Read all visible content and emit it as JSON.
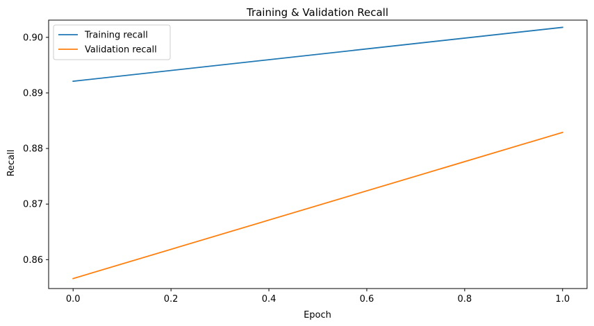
{
  "chart_data": {
    "type": "line",
    "title": "Training & Validation Recall",
    "xlabel": "Epoch",
    "ylabel": "Recall",
    "xlim": [
      -0.05,
      1.05
    ],
    "ylim": [
      0.8548,
      0.9031
    ],
    "x_ticks": [
      0.0,
      0.2,
      0.4,
      0.6,
      0.8,
      1.0
    ],
    "x_tick_labels": [
      "0.0",
      "0.2",
      "0.4",
      "0.6",
      "0.8",
      "1.0"
    ],
    "y_ticks": [
      0.86,
      0.87,
      0.88,
      0.89,
      0.9
    ],
    "y_tick_labels": [
      "0.86",
      "0.87",
      "0.88",
      "0.89",
      "0.90"
    ],
    "grid": false,
    "legend_position": "top-left",
    "series": [
      {
        "name": "Training recall",
        "color": "#1f77b4",
        "x": [
          0,
          1
        ],
        "values": [
          0.8921,
          0.9018
        ]
      },
      {
        "name": "Validation recall",
        "color": "#ff7f0e",
        "x": [
          0,
          1
        ],
        "values": [
          0.8566,
          0.8829
        ]
      }
    ]
  }
}
